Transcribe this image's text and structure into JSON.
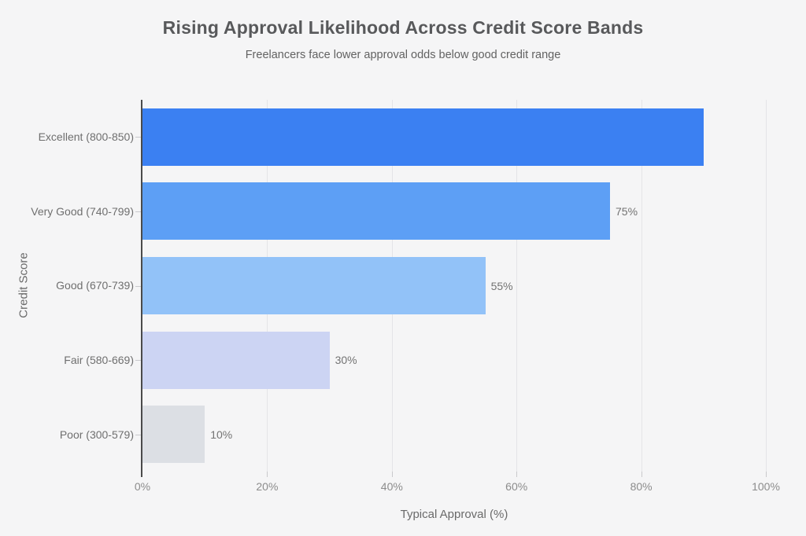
{
  "chart_data": {
    "type": "bar",
    "orientation": "horizontal",
    "title": "Rising Approval Likelihood Across Credit Score Bands",
    "subtitle": "Freelancers face lower approval odds below good credit range",
    "xlabel": "Typical Approval (%)",
    "ylabel": "Credit Score",
    "categories": [
      "Excellent (800-850)",
      "Very Good (740-799)",
      "Good (670-739)",
      "Fair (580-669)",
      "Poor (300-579)"
    ],
    "values": [
      90,
      75,
      55,
      30,
      10
    ],
    "bar_value_labels": [
      "",
      "75%",
      "55%",
      "30%",
      "10%"
    ],
    "bar_colors": [
      "#3b80f2",
      "#5d9ff5",
      "#92c2f8",
      "#ccd4f3",
      "#dcdfe4"
    ],
    "xlim": [
      0,
      100
    ],
    "xticks": [
      0,
      20,
      40,
      60,
      80,
      100
    ],
    "xtick_labels": [
      "0%",
      "20%",
      "40%",
      "60%",
      "80%",
      "100%"
    ],
    "grid": "vertical-gridlines",
    "legend": "none",
    "background_color": "#f5f5f6",
    "gridline_color": "#e4e4e7",
    "axis_line_color": "#4a4a4a"
  }
}
